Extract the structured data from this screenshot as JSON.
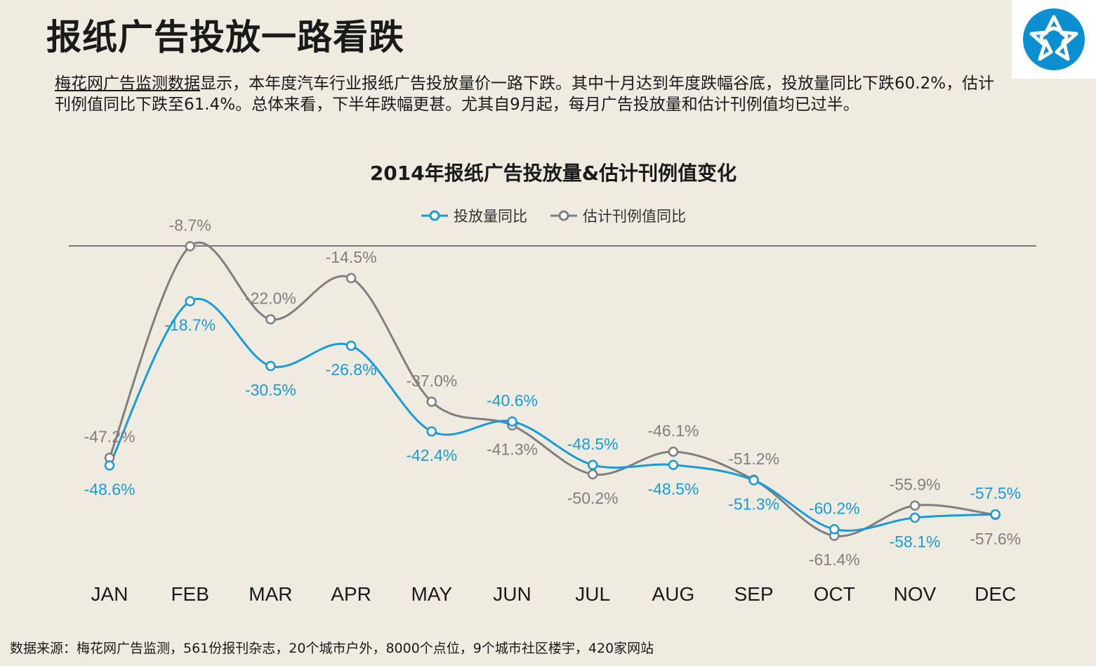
{
  "page": {
    "title": "报纸广告投放一路看跌",
    "summary_prefix": "梅花网广告监测数据",
    "summary_rest": "显示，本年度汽车行业报纸广告投放量价一路下跌。其中十月达到年度跌幅谷底，投放量同比下跌60.2%，估计刊例值同比下跌至61.4%。总体来看，下半年跌幅更甚。尤其自9月起，每月广告投放量和估计刊例值均已过半。",
    "source_note": "数据来源：梅花网广告监测，561份报刊杂志，20个城市户外，8000个点位，9个城市社区楼宇，420家网站",
    "logo_icon": "meihua-logo-icon"
  },
  "colors": {
    "background": "#efebe1",
    "logo_bg": "#0b8fd0",
    "series_blue": "#1a9ad6",
    "series_gray": "#7f7f7f"
  },
  "chart_data": {
    "type": "line",
    "title": "2014年报纸广告投放量&估计刊例值变化",
    "legend_position": "top-center",
    "categories": [
      "JAN",
      "FEB",
      "MAR",
      "APR",
      "MAY",
      "JUN",
      "JUL",
      "AUG",
      "SEP",
      "OCT",
      "NOV",
      "DEC"
    ],
    "series": [
      {
        "name": "投放量同比",
        "color": "#1a9ad6",
        "values": [
          -48.6,
          -18.7,
          -30.5,
          -26.8,
          -42.4,
          -40.6,
          -48.5,
          -48.5,
          -51.3,
          -60.2,
          -58.1,
          -57.5
        ],
        "labels": [
          "-48.6%",
          "-18.7%",
          "-30.5%",
          "-26.8%",
          "-42.4%",
          "-40.6%",
          "-48.5%",
          "-48.5%",
          "-51.3%",
          "-60.2%",
          "-58.1%",
          "-57.5%"
        ]
      },
      {
        "name": "估计刊例值同比",
        "color": "#7f7f7f",
        "values": [
          -47.2,
          -8.7,
          -22.0,
          -14.5,
          -37.0,
          -41.3,
          -50.2,
          -46.1,
          -51.2,
          -61.4,
          -55.9,
          -57.6
        ],
        "labels": [
          "-47.2%",
          "-8.7%",
          "-22.0%",
          "-14.5%",
          "-37.0%",
          "-41.3%",
          "-50.2%",
          "-46.1%",
          "-51.2%",
          "-61.4%",
          "-55.9%",
          "-57.6%"
        ]
      }
    ],
    "ylim": [
      -70,
      0
    ],
    "grid": false,
    "smooth": true
  }
}
